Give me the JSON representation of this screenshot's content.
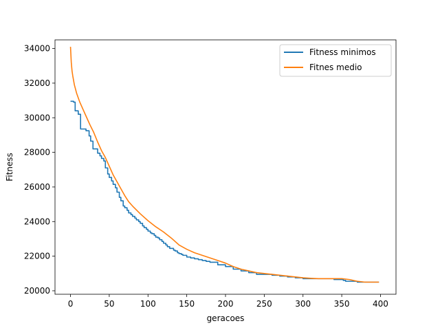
{
  "chart_data": {
    "type": "line",
    "title": "",
    "xlabel": "geracoes",
    "ylabel": "Fitness",
    "xlim": [
      -20,
      420
    ],
    "ylim": [
      19800,
      34500
    ],
    "xticks": [
      0,
      50,
      100,
      150,
      200,
      250,
      300,
      350,
      400
    ],
    "yticks": [
      20000,
      22000,
      24000,
      26000,
      28000,
      30000,
      32000,
      34000
    ],
    "xtick_labels": [
      "0",
      "50",
      "100",
      "150",
      "200",
      "250",
      "300",
      "350",
      "400"
    ],
    "ytick_labels": [
      "20000",
      "22000",
      "24000",
      "26000",
      "28000",
      "30000",
      "32000",
      "34000"
    ],
    "grid": false,
    "legend_position": "top-right",
    "series": [
      {
        "name": "Fitness minimos",
        "color": "#1f77b4",
        "step": true,
        "x": [
          0,
          4,
          6,
          10,
          13,
          20,
          24,
          26,
          29,
          35,
          38,
          40,
          43,
          45,
          48,
          50,
          53,
          55,
          58,
          60,
          63,
          65,
          68,
          70,
          73,
          75,
          78,
          80,
          83,
          85,
          88,
          90,
          93,
          95,
          98,
          100,
          103,
          105,
          108,
          110,
          113,
          115,
          118,
          120,
          123,
          125,
          128,
          130,
          133,
          135,
          138,
          140,
          143,
          145,
          150,
          155,
          160,
          165,
          170,
          175,
          180,
          190,
          200,
          210,
          220,
          230,
          240,
          250,
          260,
          270,
          280,
          290,
          300,
          310,
          320,
          330,
          340,
          350,
          352,
          355,
          360,
          370,
          380,
          390,
          398
        ],
        "values": [
          30950,
          30900,
          30400,
          30200,
          29350,
          29250,
          28950,
          28650,
          28200,
          27950,
          27800,
          27650,
          27500,
          27100,
          26750,
          26550,
          26350,
          26150,
          25950,
          25700,
          25400,
          25200,
          24900,
          24800,
          24650,
          24500,
          24400,
          24300,
          24200,
          24100,
          24000,
          23900,
          23750,
          23650,
          23550,
          23450,
          23350,
          23300,
          23200,
          23100,
          23050,
          22950,
          22850,
          22750,
          22650,
          22550,
          22450,
          22450,
          22350,
          22300,
          22200,
          22150,
          22100,
          22050,
          21950,
          21900,
          21850,
          21800,
          21750,
          21700,
          21650,
          21500,
          21400,
          21250,
          21150,
          21050,
          20950,
          20950,
          20900,
          20850,
          20800,
          20750,
          20700,
          20700,
          20700,
          20700,
          20650,
          20650,
          20600,
          20550,
          20550,
          20500,
          20500,
          20500,
          20500
        ]
      },
      {
        "name": "Fitnes medio",
        "color": "#ff7f0e",
        "step": false,
        "x": [
          0,
          1,
          2,
          3,
          5,
          8,
          12,
          16,
          20,
          25,
          30,
          35,
          40,
          45,
          50,
          55,
          60,
          65,
          70,
          75,
          80,
          90,
          100,
          110,
          120,
          130,
          140,
          150,
          160,
          170,
          180,
          190,
          200,
          210,
          220,
          230,
          240,
          250,
          260,
          270,
          280,
          290,
          300,
          310,
          320,
          330,
          340,
          350,
          360,
          370,
          380,
          390,
          398
        ],
        "values": [
          34100,
          33200,
          32700,
          32400,
          31900,
          31400,
          30900,
          30500,
          30100,
          29600,
          29150,
          28600,
          28100,
          27700,
          27200,
          26700,
          26300,
          25900,
          25500,
          25150,
          24900,
          24450,
          24050,
          23700,
          23400,
          23050,
          22650,
          22400,
          22200,
          22050,
          21900,
          21750,
          21600,
          21400,
          21250,
          21150,
          21050,
          21000,
          20950,
          20900,
          20850,
          20800,
          20750,
          20720,
          20700,
          20700,
          20700,
          20700,
          20650,
          20550,
          20500,
          20500,
          20500
        ]
      }
    ]
  }
}
